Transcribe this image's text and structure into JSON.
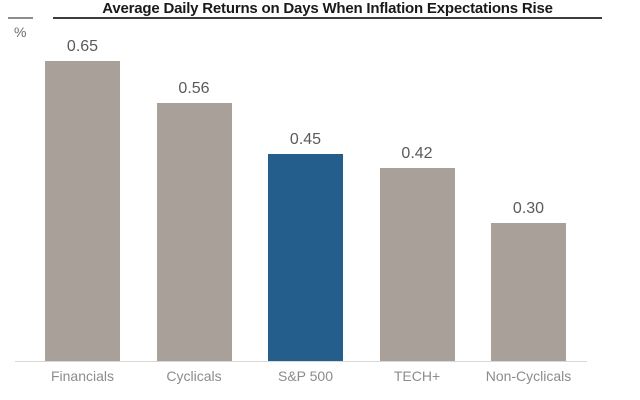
{
  "header": {
    "title": "Average Daily Returns on Days When Inflation Expectations Rise",
    "unit_label": "%"
  },
  "colors": {
    "bar_default": "#a8a099",
    "bar_highlight": "#235e8c",
    "title_text": "#1a1a1a",
    "title_underline": "#3d3d3d",
    "value_text": "#5a5a5a",
    "category_text": "#8c8c8c",
    "baseline": "#d8d8d8"
  },
  "chart_data": {
    "type": "bar",
    "title": "Average Daily Returns on Days When Inflation Expectations Rise",
    "xlabel": "",
    "ylabel": "%",
    "ylim": [
      0,
      0.78
    ],
    "grid": false,
    "legend": "none",
    "categories": [
      "Financials",
      "Cyclicals",
      "S&P 500",
      "TECH+",
      "Non-Cyclicals"
    ],
    "values": [
      0.65,
      0.56,
      0.45,
      0.42,
      0.3
    ],
    "value_labels": [
      "0.65",
      "0.56",
      "0.45",
      "0.42",
      "0.30"
    ],
    "highlight_category": "S&P 500",
    "highlight_index": 2
  }
}
